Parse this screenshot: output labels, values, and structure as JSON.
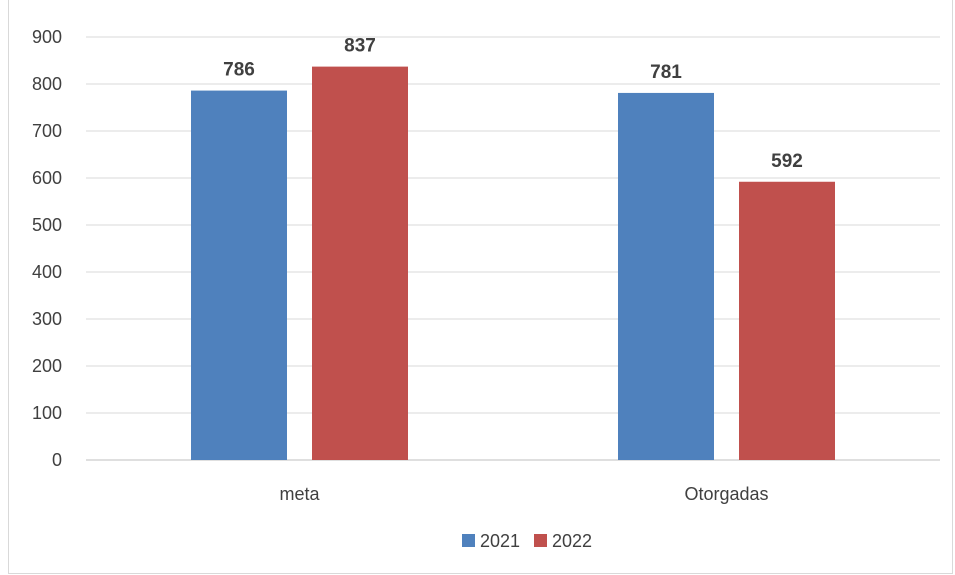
{
  "chart_data": {
    "type": "bar",
    "categories": [
      "meta",
      "Otorgadas"
    ],
    "series": [
      {
        "name": "2021",
        "values": [
          786,
          781
        ],
        "color": "#4f81bd"
      },
      {
        "name": "2022",
        "values": [
          837,
          592
        ],
        "color": "#c0504d"
      }
    ],
    "title": "",
    "xlabel": "",
    "ylabel": "",
    "ylim": [
      0,
      900
    ],
    "yticks": [
      0,
      100,
      200,
      300,
      400,
      500,
      600,
      700,
      800,
      900
    ],
    "grid": true,
    "legend_position": "bottom"
  }
}
